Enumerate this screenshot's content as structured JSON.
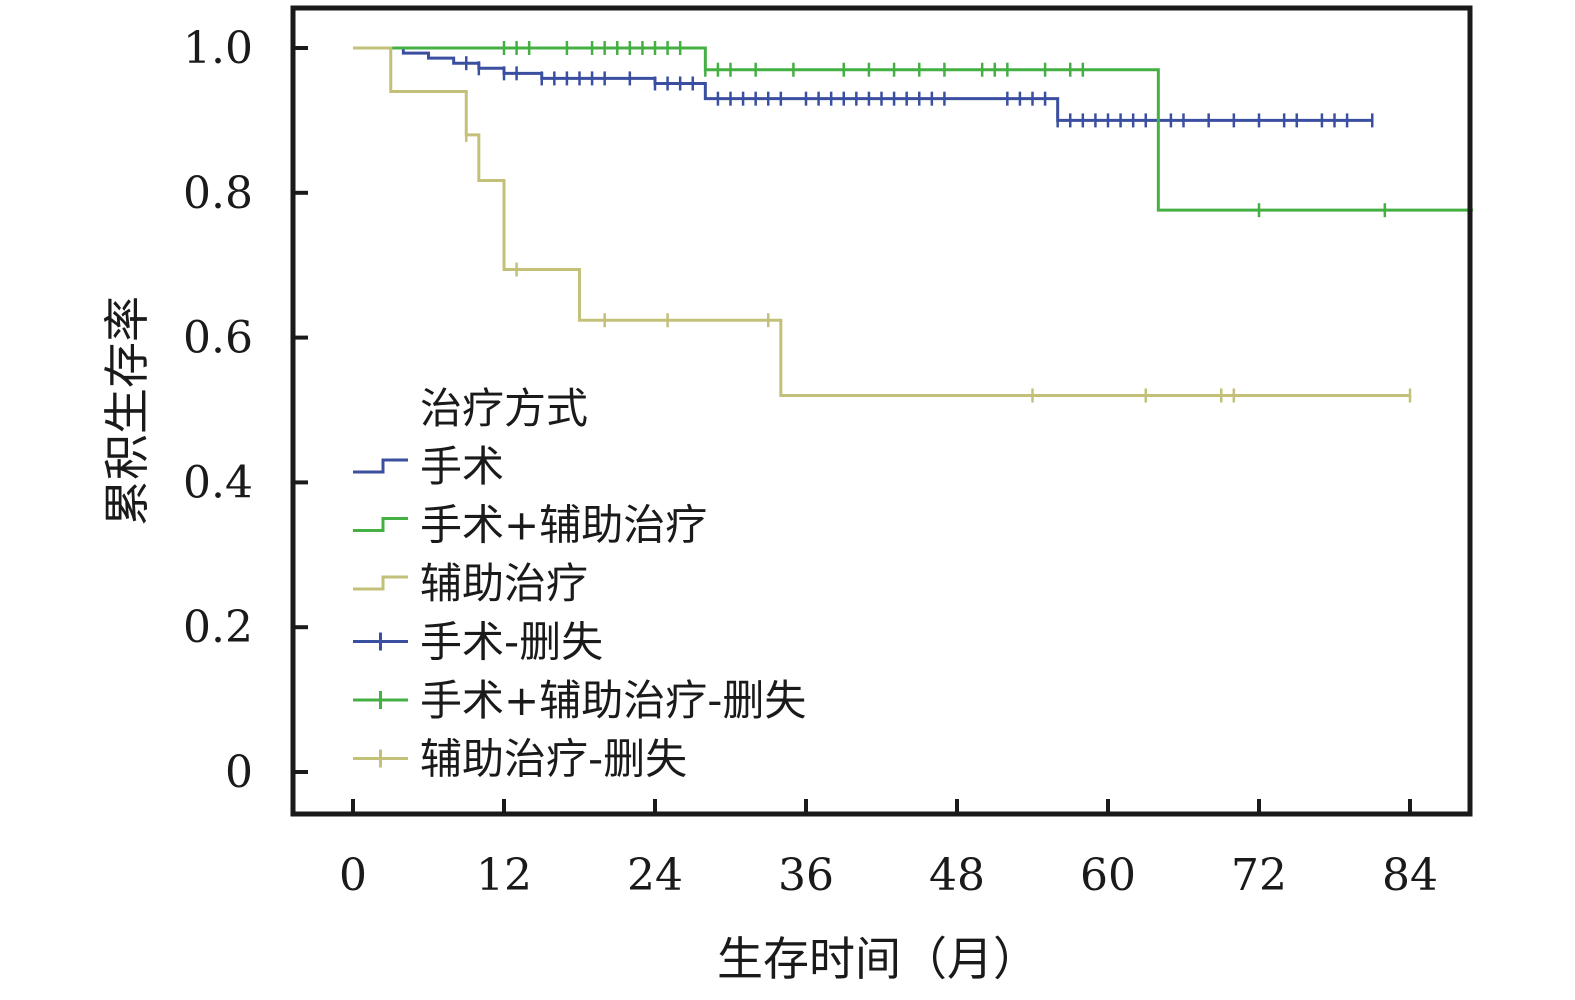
{
  "chart_data": {
    "type": "line",
    "subtype": "kaplan-meier",
    "title": "",
    "xlabel": "生存时间（月）",
    "ylabel": "累积生存率",
    "xlim": [
      -4,
      89
    ],
    "ylim": [
      -0.05,
      1.06
    ],
    "xticks": [
      "0",
      "12",
      "24",
      "36",
      "48",
      "60",
      "72",
      "84"
    ],
    "yticks": [
      "0",
      "0.2",
      "0.4",
      "0.6",
      "0.8",
      "1.0"
    ],
    "grid": false,
    "legend": {
      "title": "治疗方式",
      "placement": "left-middle",
      "entries": [
        {
          "label": "手术",
          "kind": "step",
          "color": "#3b4fa0"
        },
        {
          "label": "手术+辅助治疗",
          "kind": "step",
          "color": "#44b044"
        },
        {
          "label": "辅助治疗",
          "kind": "step",
          "color": "#c3c07a"
        },
        {
          "label": "手术-删失",
          "kind": "censor",
          "color": "#3b4fa0"
        },
        {
          "label": "手术+辅助治疗-删失",
          "kind": "censor",
          "color": "#44b044"
        },
        {
          "label": "辅助治疗-删失",
          "kind": "censor",
          "color": "#c3c07a"
        }
      ]
    },
    "series": [
      {
        "name": "手术",
        "color": "#3b4fa0",
        "steps": [
          [
            0,
            1.0
          ],
          [
            4,
            0.993
          ],
          [
            6,
            0.986
          ],
          [
            8,
            0.979
          ],
          [
            10,
            0.972
          ],
          [
            12,
            0.965
          ],
          [
            15,
            0.958
          ],
          [
            24,
            0.951
          ],
          [
            28,
            0.93
          ],
          [
            56,
            0.9
          ]
        ],
        "end_x": 81,
        "censored": [
          [
            9,
            0.979
          ],
          [
            10,
            0.972
          ],
          [
            12,
            0.965
          ],
          [
            13,
            0.965
          ],
          [
            15,
            0.958
          ],
          [
            16,
            0.958
          ],
          [
            17,
            0.958
          ],
          [
            18,
            0.958
          ],
          [
            19,
            0.958
          ],
          [
            20,
            0.958
          ],
          [
            22,
            0.958
          ],
          [
            24,
            0.951
          ],
          [
            25,
            0.951
          ],
          [
            26,
            0.951
          ],
          [
            27,
            0.951
          ],
          [
            29,
            0.93
          ],
          [
            30,
            0.93
          ],
          [
            31,
            0.93
          ],
          [
            32,
            0.93
          ],
          [
            33,
            0.93
          ],
          [
            34,
            0.93
          ],
          [
            36,
            0.93
          ],
          [
            37,
            0.93
          ],
          [
            38,
            0.93
          ],
          [
            39,
            0.93
          ],
          [
            40,
            0.93
          ],
          [
            41,
            0.93
          ],
          [
            42,
            0.93
          ],
          [
            43,
            0.93
          ],
          [
            44,
            0.93
          ],
          [
            45,
            0.93
          ],
          [
            46,
            0.93
          ],
          [
            47,
            0.93
          ],
          [
            52,
            0.93
          ],
          [
            53,
            0.93
          ],
          [
            54,
            0.93
          ],
          [
            55,
            0.93
          ],
          [
            56,
            0.9
          ],
          [
            57,
            0.9
          ],
          [
            58,
            0.9
          ],
          [
            59,
            0.9
          ],
          [
            60,
            0.9
          ],
          [
            61,
            0.9
          ],
          [
            62,
            0.9
          ],
          [
            63,
            0.9
          ],
          [
            65,
            0.9
          ],
          [
            66,
            0.9
          ],
          [
            68,
            0.9
          ],
          [
            70,
            0.9
          ],
          [
            72,
            0.9
          ],
          [
            74,
            0.9
          ],
          [
            75,
            0.9
          ],
          [
            77,
            0.9
          ],
          [
            78,
            0.9
          ],
          [
            79,
            0.9
          ],
          [
            81,
            0.9
          ]
        ]
      },
      {
        "name": "手术+辅助治疗",
        "color": "#44b044",
        "steps": [
          [
            0,
            1.0
          ],
          [
            28,
            0.97
          ],
          [
            64,
            0.776
          ]
        ],
        "end_x": 89,
        "censored": [
          [
            12,
            1.0
          ],
          [
            13,
            1.0
          ],
          [
            14,
            1.0
          ],
          [
            17,
            1.0
          ],
          [
            19,
            1.0
          ],
          [
            20,
            1.0
          ],
          [
            21,
            1.0
          ],
          [
            22,
            1.0
          ],
          [
            23,
            1.0
          ],
          [
            24,
            1.0
          ],
          [
            25,
            1.0
          ],
          [
            26,
            1.0
          ],
          [
            28,
            0.97
          ],
          [
            29,
            0.97
          ],
          [
            30,
            0.97
          ],
          [
            32,
            0.97
          ],
          [
            35,
            0.97
          ],
          [
            39,
            0.97
          ],
          [
            41,
            0.97
          ],
          [
            43,
            0.97
          ],
          [
            45,
            0.97
          ],
          [
            47,
            0.97
          ],
          [
            50,
            0.97
          ],
          [
            51,
            0.97
          ],
          [
            52,
            0.97
          ],
          [
            55,
            0.97
          ],
          [
            57,
            0.97
          ],
          [
            58,
            0.97
          ],
          [
            72,
            0.776
          ],
          [
            82,
            0.776
          ]
        ]
      },
      {
        "name": "辅助治疗",
        "color": "#c3c07a",
        "steps": [
          [
            0,
            1.0
          ],
          [
            3,
            0.94
          ],
          [
            9,
            0.88
          ],
          [
            10,
            0.817
          ],
          [
            12,
            0.694
          ],
          [
            18,
            0.624
          ],
          [
            34,
            0.52
          ]
        ],
        "end_x": 84,
        "censored": [
          [
            9,
            0.88
          ],
          [
            13,
            0.694
          ],
          [
            20,
            0.624
          ],
          [
            25,
            0.624
          ],
          [
            33,
            0.624
          ],
          [
            54,
            0.52
          ],
          [
            63,
            0.52
          ],
          [
            69,
            0.52
          ],
          [
            70,
            0.52
          ],
          [
            84,
            0.52
          ]
        ]
      }
    ]
  }
}
